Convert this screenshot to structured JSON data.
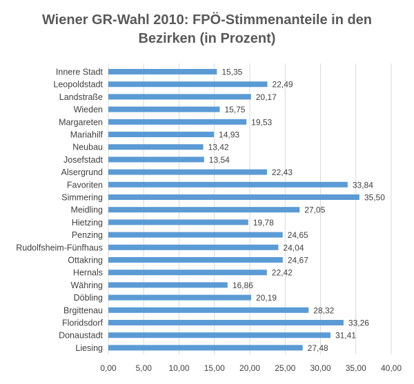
{
  "chart_data": {
    "type": "bar",
    "orientation": "horizontal",
    "title_line1": "Wiener GR-Wahl 2010: FPÖ-Stimmenanteile in den",
    "title_line2": "Bezirken (in Prozent)",
    "categories": [
      "Innere Stadt",
      "Leopoldstadt",
      "Landstraße",
      "Wieden",
      "Margareten",
      "Mariahilf",
      "Neubau",
      "Josefstadt",
      "Alsergrund",
      "Favoriten",
      "Simmering",
      "Meidling",
      "Hietzing",
      "Penzing",
      "Rudolfsheim-Fünfhaus",
      "Ottakring",
      "Hernals",
      "Währing",
      "Döbling",
      "Brgittenau",
      "Floridsdorf",
      "Donaustadt",
      "Liesing"
    ],
    "values": [
      15.35,
      22.49,
      20.17,
      15.75,
      19.53,
      14.93,
      13.42,
      13.54,
      22.43,
      33.84,
      35.5,
      27.05,
      19.78,
      24.65,
      24.04,
      24.67,
      22.42,
      16.86,
      20.19,
      28.32,
      33.26,
      31.41,
      27.48
    ],
    "value_labels": [
      "15,35",
      "22,49",
      "20,17",
      "15,75",
      "19,53",
      "14,93",
      "13,42",
      "13,54",
      "22,43",
      "33,84",
      "35,50",
      "27,05",
      "19,78",
      "24,65",
      "24,04",
      "24,67",
      "22,42",
      "16,86",
      "20,19",
      "28,32",
      "33,26",
      "31,41",
      "27,48"
    ],
    "ticks": [
      0,
      5,
      10,
      15,
      20,
      25,
      30,
      35,
      40
    ],
    "tick_labels": [
      "0,00",
      "5,00",
      "10,00",
      "15,00",
      "20,00",
      "25,00",
      "30,00",
      "35,00",
      "40,00"
    ],
    "xlim": [
      0,
      40
    ],
    "grid": true,
    "bar_color": "#5b9bd5",
    "grid_color": "#d9d9d9",
    "xlabel": "",
    "ylabel": ""
  }
}
